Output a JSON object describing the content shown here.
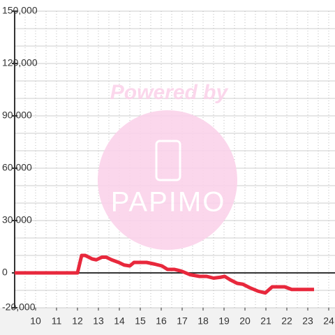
{
  "chart_data": {
    "type": "line",
    "watermark": {
      "title": "Powered by",
      "brand": "PAPIMO"
    },
    "x": [
      9,
      12,
      12.2,
      12.37,
      12.7,
      12.9,
      13.17,
      13.37,
      13.63,
      13.97,
      14.23,
      14.5,
      14.7,
      15.3,
      15.7,
      16.03,
      16.3,
      16.63,
      16.97,
      17.37,
      17.83,
      18.17,
      18.5,
      18.83,
      19.03,
      19.3,
      19.63,
      19.9,
      20.23,
      20.63,
      20.97,
      21.3,
      21.9,
      22.23,
      23.3
    ],
    "series": [
      {
        "color": "#e8283c",
        "values": [
          0,
          0,
          10000,
          10000,
          8000,
          7500,
          9000,
          9000,
          7500,
          6000,
          4500,
          4000,
          6000,
          6000,
          5000,
          4000,
          2000,
          2000,
          1000,
          -1000,
          -2000,
          -2000,
          -3000,
          -2500,
          -2000,
          -4000,
          -6000,
          -6500,
          -8500,
          -10500,
          -11500,
          -8000,
          -8000,
          -9500,
          -9500
        ]
      }
    ],
    "xlim": [
      9,
      24.3
    ],
    "xticks": [
      10,
      11,
      12,
      13,
      14,
      15,
      16,
      17,
      18,
      19,
      20,
      21,
      22,
      23,
      24
    ],
    "ylim": [
      -20000,
      150000
    ],
    "yticks": [
      {
        "value": -20000,
        "label": "-20,000"
      },
      0,
      {
        "value": 30000,
        "label": "30,000"
      },
      {
        "value": 60000,
        "label": "60,000"
      },
      {
        "value": 90000,
        "label": "90,000"
      },
      {
        "value": 120000,
        "label": "120,000"
      },
      {
        "value": 150000,
        "label": "150,000"
      }
    ],
    "grid": true,
    "y_minor_step": 10000,
    "x_minor_step": 0.5
  }
}
